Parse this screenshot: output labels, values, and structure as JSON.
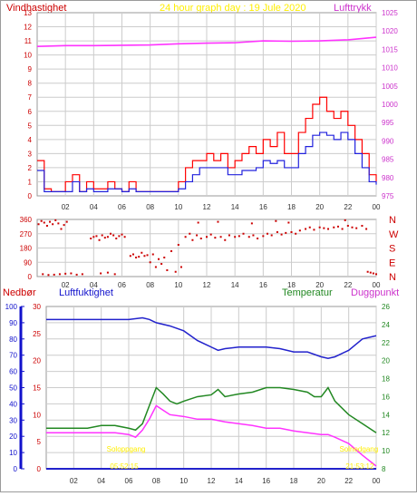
{
  "colors": {
    "wind": "#ff0000",
    "wind_avg": "#2222dd",
    "pressure": "#ff33ff",
    "humidity": "#2222cc",
    "temperature": "#228822",
    "dewpoint": "#ff33ff",
    "precip": "#2222cc",
    "direction": "#cc0000",
    "title": "#ffee00",
    "grid": "#cccccc",
    "axis_red": "#cc0000",
    "axis_magenta": "#cc33cc",
    "axis_blue": "#1111cc",
    "axis_green": "#228822"
  },
  "chart_data": [
    {
      "id": "wind_pressure",
      "type": "line",
      "title": "24 hour graph day : 19 Jule 2020",
      "ylabel_left": "Vindhastighet",
      "ylabel_right": "Lufttrykk",
      "x_ticks": [
        "02",
        "04",
        "06",
        "08",
        "10",
        "12",
        "14",
        "16",
        "18",
        "20",
        "22",
        "00"
      ],
      "ylim_left": [
        0,
        13
      ],
      "yticks_left": [
        "0",
        "1",
        "2",
        "3",
        "4",
        "5",
        "6",
        "7",
        "8",
        "9",
        "10",
        "11",
        "12",
        "13"
      ],
      "ylim_right": [
        975,
        1025
      ],
      "yticks_right": [
        "975",
        "980",
        "985",
        "990",
        "995",
        "1000",
        "1005",
        "1010",
        "1015",
        "1020",
        "1025"
      ],
      "grid": true,
      "series": [
        {
          "name": "Vindhastighet",
          "axis": "left",
          "color_key": "wind",
          "x": [
            0,
            0.5,
            1,
            1.5,
            2,
            2.5,
            3,
            3.5,
            4,
            4.5,
            5,
            5.5,
            6,
            6.5,
            7,
            7.5,
            8,
            8.5,
            9,
            9.5,
            10,
            10.5,
            11,
            11.5,
            12,
            12.5,
            13,
            13.5,
            14,
            14.5,
            15,
            15.5,
            16,
            16.5,
            17,
            17.5,
            18,
            18.5,
            19,
            19.5,
            20,
            20.5,
            21,
            21.5,
            22,
            22.5,
            23,
            23.5,
            24
          ],
          "values": [
            2.5,
            0.5,
            0.3,
            0.3,
            1,
            1.5,
            0.3,
            1,
            0.5,
            0.5,
            1,
            0.5,
            0.3,
            1,
            0.3,
            0.3,
            0.3,
            0.3,
            0.3,
            0.3,
            1,
            2,
            2.5,
            2.5,
            3,
            2.5,
            3,
            2,
            2.5,
            3,
            3.5,
            3,
            4,
            3.5,
            4.5,
            3,
            3,
            4.5,
            5.5,
            6.5,
            7,
            6,
            5.5,
            6,
            5,
            4,
            3,
            1.5,
            1
          ]
        },
        {
          "name": "Vindhastighet middel",
          "axis": "left",
          "color_key": "wind_avg",
          "x": [
            0,
            0.5,
            1,
            1.5,
            2,
            2.5,
            3,
            3.5,
            4,
            4.5,
            5,
            5.5,
            6,
            6.5,
            7,
            7.5,
            8,
            8.5,
            9,
            9.5,
            10,
            10.5,
            11,
            11.5,
            12,
            12.5,
            13,
            13.5,
            14,
            14.5,
            15,
            15.5,
            16,
            16.5,
            17,
            17.5,
            18,
            18.5,
            19,
            19.5,
            20,
            20.5,
            21,
            21.5,
            22,
            22.5,
            23,
            23.5,
            24
          ],
          "values": [
            1.8,
            0.3,
            0.3,
            0.3,
            0.3,
            1,
            0.3,
            0.5,
            0.3,
            0.3,
            0.5,
            0.5,
            0.3,
            0.5,
            0.3,
            0.3,
            0.3,
            0.3,
            0.3,
            0.3,
            0.5,
            1,
            1.5,
            2,
            2,
            2,
            2,
            1.5,
            1.5,
            1.8,
            1.8,
            2,
            2.5,
            2.3,
            2.5,
            2,
            2,
            3,
            3.5,
            4.3,
            4.5,
            4.3,
            4,
            4.5,
            4,
            3,
            2,
            1,
            0.8
          ]
        },
        {
          "name": "Lufttrykk",
          "axis": "right",
          "color_key": "pressure",
          "x": [
            0,
            2,
            4,
            6,
            8,
            10,
            12,
            14,
            16,
            18,
            20,
            22,
            24
          ],
          "values": [
            1015.8,
            1016,
            1016,
            1016.1,
            1016.2,
            1016.5,
            1016.7,
            1016.8,
            1017.3,
            1017.2,
            1017.3,
            1017.6,
            1018.3
          ]
        }
      ]
    },
    {
      "id": "wind_direction",
      "type": "scatter",
      "ylim": [
        0,
        360
      ],
      "yticks_left": [
        "0",
        "90",
        "180",
        "270",
        "360"
      ],
      "yticks_right": [
        "N",
        "E",
        "S",
        "W",
        "N"
      ],
      "x_ticks": [
        "02",
        "04",
        "06",
        "08",
        "10",
        "12",
        "14",
        "16",
        "18",
        "20",
        "22",
        "00"
      ],
      "grid": true,
      "series": [
        {
          "name": "Vindretning",
          "color_key": "direction",
          "points": [
            [
              0.1,
              330
            ],
            [
              0.3,
              350
            ],
            [
              0.5,
              340
            ],
            [
              0.7,
              320
            ],
            [
              0.9,
              345
            ],
            [
              1.1,
              330
            ],
            [
              1.3,
              355
            ],
            [
              1.5,
              335
            ],
            [
              1.7,
              300
            ],
            [
              1.9,
              325
            ],
            [
              2.1,
              345
            ],
            [
              0.4,
              15
            ],
            [
              0.8,
              10
            ],
            [
              1.2,
              12
            ],
            [
              1.6,
              15
            ],
            [
              2,
              18
            ],
            [
              2.4,
              20
            ],
            [
              2.8,
              12
            ],
            [
              3.2,
              15
            ],
            [
              3.8,
              240
            ],
            [
              4,
              250
            ],
            [
              4.2,
              255
            ],
            [
              4.4,
              230
            ],
            [
              4.6,
              260
            ],
            [
              4.8,
              245
            ],
            [
              5,
              250
            ],
            [
              5.2,
              270
            ],
            [
              5.4,
              260
            ],
            [
              5.6,
              240
            ],
            [
              5.8,
              255
            ],
            [
              6,
              265
            ],
            [
              6.2,
              250
            ],
            [
              4.5,
              20
            ],
            [
              5,
              25
            ],
            [
              5.5,
              15
            ],
            [
              6.6,
              130
            ],
            [
              6.8,
              140
            ],
            [
              7,
              120
            ],
            [
              7.2,
              125
            ],
            [
              7.4,
              150
            ],
            [
              7.6,
              130
            ],
            [
              7.8,
              135
            ],
            [
              8,
              90
            ],
            [
              8.2,
              140
            ],
            [
              8.4,
              60
            ],
            [
              8.6,
              110
            ],
            [
              8.8,
              80
            ],
            [
              9,
              120
            ],
            [
              9.2,
              40
            ],
            [
              9.5,
              160
            ],
            [
              9.8,
              30
            ],
            [
              10,
              200
            ],
            [
              10.2,
              60
            ],
            [
              10.5,
              250
            ],
            [
              10.8,
              270
            ],
            [
              11,
              230
            ],
            [
              11.3,
              260
            ],
            [
              11.6,
              240
            ],
            [
              12,
              250
            ],
            [
              12.3,
              265
            ],
            [
              12.6,
              245
            ],
            [
              13,
              250
            ],
            [
              13.3,
              230
            ],
            [
              13.6,
              260
            ],
            [
              14,
              250
            ],
            [
              14.3,
              255
            ],
            [
              14.6,
              270
            ],
            [
              15,
              250
            ],
            [
              15.3,
              260
            ],
            [
              15.6,
              240
            ],
            [
              16,
              255
            ],
            [
              16.3,
              270
            ],
            [
              16.6,
              260
            ],
            [
              17,
              280
            ],
            [
              17.3,
              265
            ],
            [
              17.6,
              275
            ],
            [
              18,
              280
            ],
            [
              18.3,
              270
            ],
            [
              18.6,
              290
            ],
            [
              19,
              300
            ],
            [
              19.3,
              310
            ],
            [
              19.6,
              295
            ],
            [
              20,
              310
            ],
            [
              20.3,
              305
            ],
            [
              20.6,
              300
            ],
            [
              21,
              310
            ],
            [
              21.3,
              315
            ],
            [
              21.6,
              300
            ],
            [
              22,
              320
            ],
            [
              22.3,
              310
            ],
            [
              22.6,
              305
            ],
            [
              23,
              320
            ],
            [
              23.3,
              300
            ],
            [
              11.4,
              340
            ],
            [
              12.8,
              345
            ],
            [
              15.2,
              335
            ],
            [
              16.9,
              350
            ],
            [
              17.8,
              340
            ],
            [
              21.8,
              355
            ],
            [
              23.4,
              30
            ],
            [
              23.6,
              25
            ],
            [
              23.8,
              20
            ],
            [
              24,
              15
            ]
          ]
        }
      ]
    },
    {
      "id": "humidity_temp",
      "type": "line",
      "ylabel_left_1": "Nedbør",
      "ylabel_left_2": "Luftfuktighet",
      "ylabel_right_1": "Temperatur",
      "ylabel_right_2": "Duggpunkt",
      "x_ticks": [
        "02",
        "04",
        "06",
        "08",
        "10",
        "12",
        "14",
        "16",
        "18",
        "20",
        "22",
        "00"
      ],
      "ylim_humidity": [
        0,
        100
      ],
      "yticks_humidity": [
        "0",
        "10",
        "20",
        "30",
        "40",
        "50",
        "60",
        "70",
        "80",
        "90",
        "100"
      ],
      "ylim_precip": [
        0,
        30
      ],
      "yticks_precip": [
        "0",
        "5",
        "10",
        "15",
        "20",
        "25",
        "30"
      ],
      "ylim_temp": [
        8,
        26
      ],
      "yticks_temp": [
        "8",
        "10",
        "12",
        "14",
        "16",
        "18",
        "20",
        "22",
        "24",
        "26"
      ],
      "annotations": [
        {
          "text": "Soloppgang",
          "time": 6.0
        },
        {
          "text": "05:52:15",
          "time": 6.0
        },
        {
          "text": "Solnedgang",
          "time": 23.0
        },
        {
          "text": "21:53:12",
          "time": 23.0
        }
      ],
      "grid": true,
      "series": [
        {
          "name": "Luftfuktighet",
          "axis": "humidity",
          "color_key": "humidity",
          "x": [
            0,
            1,
            2,
            3,
            4,
            5,
            6,
            7,
            7.5,
            8,
            9,
            10,
            11,
            12,
            12.5,
            13,
            14,
            15,
            16,
            17,
            18,
            19,
            20,
            20.5,
            21,
            22,
            23,
            24
          ],
          "values": [
            92,
            92,
            92,
            92,
            92,
            92,
            92,
            93,
            92,
            90,
            88,
            85,
            79,
            75,
            73,
            74,
            75,
            75,
            75,
            74,
            72,
            72,
            69,
            68,
            69,
            73,
            80,
            82
          ]
        },
        {
          "name": "Temperatur",
          "axis": "temp",
          "color_key": "temperature",
          "x": [
            0,
            1,
            2,
            3,
            4,
            5,
            6,
            6.5,
            7,
            7.5,
            8,
            8.5,
            9,
            9.5,
            10,
            11,
            12,
            12.5,
            13,
            14,
            15,
            16,
            17,
            18,
            19,
            19.5,
            20,
            20.5,
            21,
            22,
            23,
            24
          ],
          "values": [
            12.5,
            12.5,
            12.5,
            12.5,
            12.8,
            12.8,
            12.5,
            12.3,
            13,
            15,
            17,
            16.3,
            15.5,
            15.2,
            15.5,
            16,
            16.2,
            16.8,
            16,
            16.3,
            16.5,
            17,
            17,
            16.8,
            16.5,
            16,
            16,
            17,
            15.5,
            14,
            13,
            12
          ]
        },
        {
          "name": "Duggpunkt",
          "axis": "temp",
          "color_key": "dewpoint",
          "x": [
            0,
            1,
            2,
            3,
            4,
            5,
            6,
            6.5,
            7,
            7.5,
            8,
            8.5,
            9,
            10,
            11,
            12,
            13,
            14,
            15,
            16,
            17,
            18,
            19,
            20,
            20.5,
            21,
            22,
            23,
            24
          ],
          "values": [
            12,
            12,
            12,
            12,
            12,
            12,
            11.8,
            11.5,
            12.3,
            13.5,
            15,
            14.5,
            14,
            13.8,
            13.5,
            13.5,
            13.2,
            13,
            12.8,
            12.5,
            12.5,
            12.2,
            12,
            11.8,
            11.8,
            11.5,
            10.8,
            9.5,
            8.3
          ]
        },
        {
          "name": "Nedbør",
          "axis": "precip",
          "color_key": "precip",
          "x": [
            0,
            24
          ],
          "values": [
            0,
            0
          ]
        }
      ]
    }
  ]
}
